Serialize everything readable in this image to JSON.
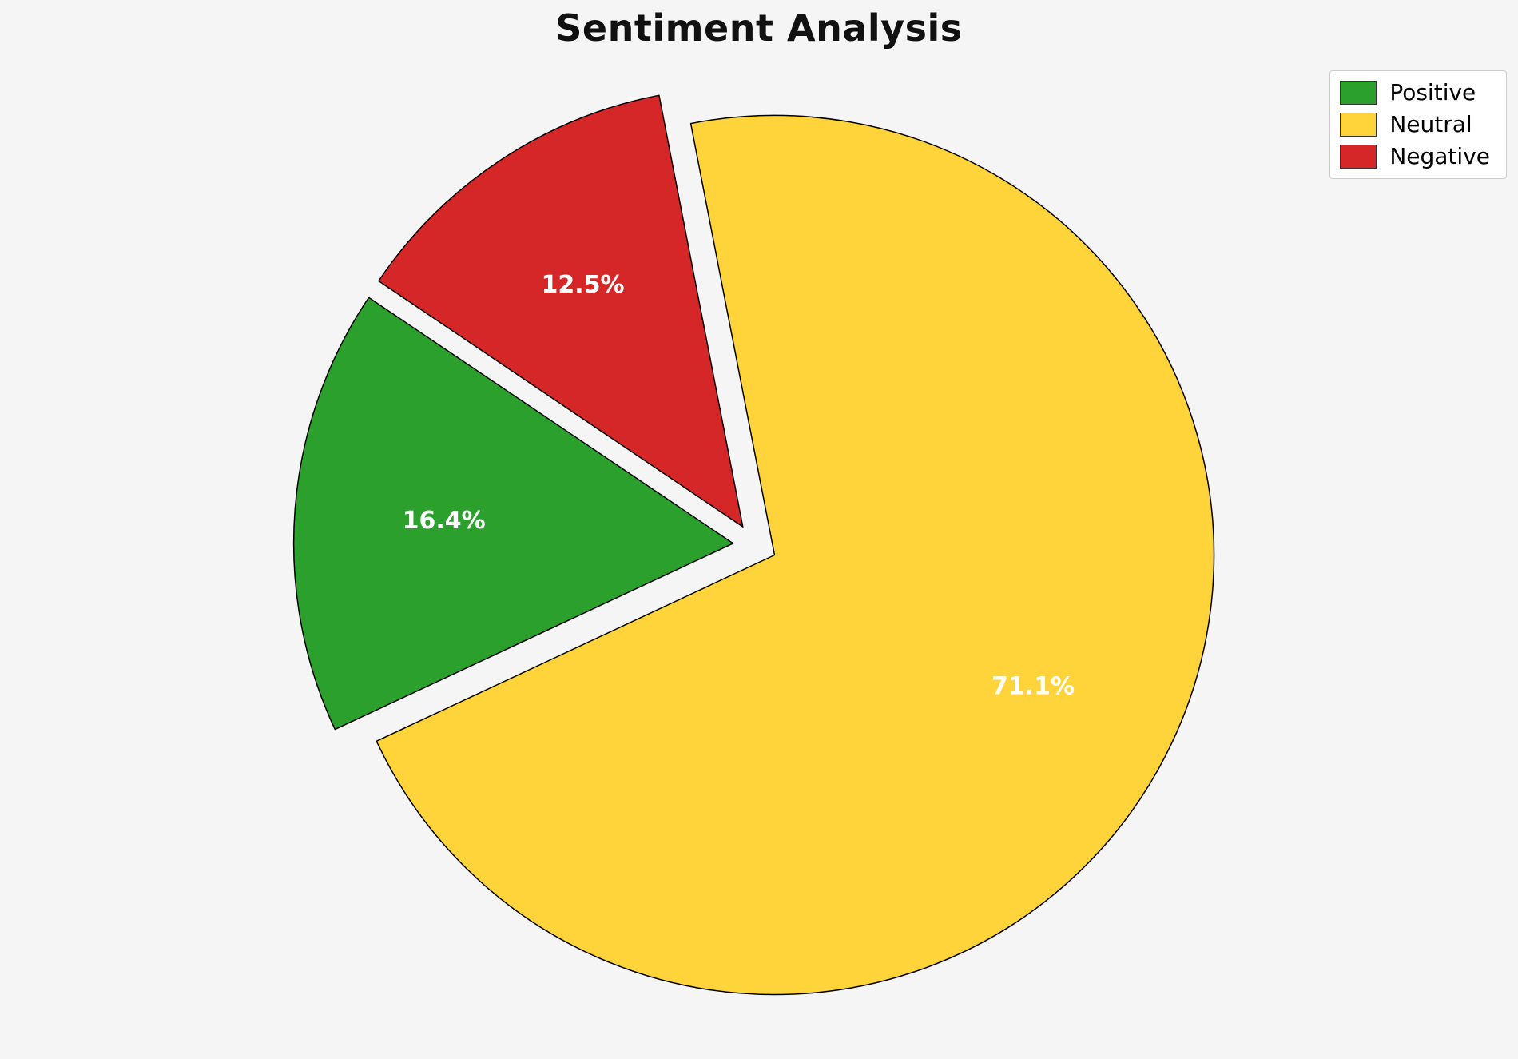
{
  "title": "Sentiment Analysis",
  "chart_data": {
    "type": "pie",
    "title": "Sentiment Analysis",
    "labels": [
      "Positive",
      "Neutral",
      "Negative"
    ],
    "values": [
      16.4,
      71.1,
      12.5
    ],
    "value_labels": [
      "16.4%",
      "71.1%",
      "12.5%"
    ],
    "colors": [
      "#2ca02c",
      "#ffd43b",
      "#d62728"
    ],
    "edge_color": "#000000",
    "label_color": "#ffffff",
    "start_angle": 146,
    "explode": [
      0.05,
      0.05,
      0.05
    ],
    "legend_position": "upper right",
    "background": "#f5f5f5"
  },
  "legend": {
    "items": [
      {
        "label": "Positive",
        "color": "#2ca02c"
      },
      {
        "label": "Neutral",
        "color": "#ffd43b"
      },
      {
        "label": "Negative",
        "color": "#d62728"
      }
    ]
  }
}
